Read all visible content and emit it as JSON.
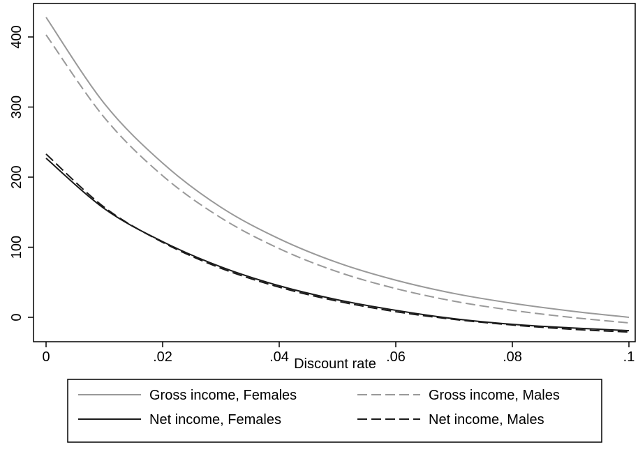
{
  "chart_data": {
    "type": "line",
    "title": "",
    "xlabel": "Discount rate",
    "ylabel": "",
    "xlim": [
      0,
      0.1
    ],
    "ylim": [
      -35,
      445
    ],
    "x_ticks": [
      {
        "value": 0,
        "label": "0"
      },
      {
        "value": 0.02,
        "label": ".02"
      },
      {
        "value": 0.04,
        "label": ".04"
      },
      {
        "value": 0.06,
        "label": ".06"
      },
      {
        "value": 0.08,
        "label": ".08"
      },
      {
        "value": 0.1,
        "label": ".1"
      }
    ],
    "y_ticks": [
      {
        "value": 0,
        "label": "0"
      },
      {
        "value": 100,
        "label": "100"
      },
      {
        "value": 200,
        "label": "200"
      },
      {
        "value": 300,
        "label": "300"
      },
      {
        "value": 400,
        "label": "400"
      }
    ],
    "grid": false,
    "legend_placement": "bottom",
    "x": [
      0,
      0.01,
      0.02,
      0.03,
      0.04,
      0.05,
      0.06,
      0.07,
      0.08,
      0.09,
      0.1
    ],
    "series": [
      {
        "name": "Gross income, Females",
        "color": "#999999",
        "dash": "solid",
        "values": [
          428,
          305,
          220,
          157,
          112,
          78,
          53,
          34,
          20,
          9,
          0
        ]
      },
      {
        "name": "Gross income, Males",
        "color": "#999999",
        "dash": "dashed",
        "values": [
          403,
          285,
          202,
          142,
          98,
          65,
          41,
          23,
          10,
          0,
          -8
        ]
      },
      {
        "name": "Net income, Females",
        "color": "#1a1a1a",
        "dash": "solid",
        "values": [
          227,
          155,
          108,
          72,
          45,
          25,
          10,
          -2,
          -10,
          -15,
          -19
        ]
      },
      {
        "name": "Net income, Males",
        "color": "#1a1a1a",
        "dash": "dashed",
        "values": [
          233,
          157,
          107,
          70,
          43,
          23,
          8,
          -3,
          -11,
          -17,
          -21
        ]
      }
    ]
  }
}
